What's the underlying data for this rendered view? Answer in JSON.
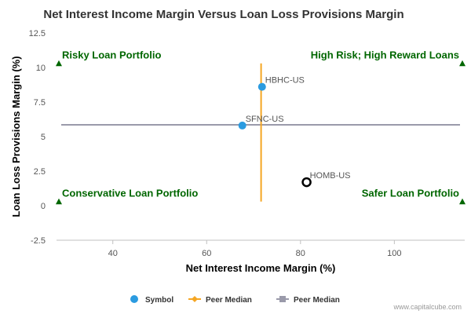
{
  "chart_data": {
    "type": "scatter",
    "title": "Net Interest Income Margin Versus Loan Loss Provisions Margin",
    "xlabel": "Net Interest Income Margin (%)",
    "ylabel": "Loan Loss Provisions Margin (%)",
    "xlim": [
      28,
      115
    ],
    "ylim": [
      -2.5,
      12.5
    ],
    "xticks": [
      "40",
      "60",
      "80",
      "100"
    ],
    "xtick_values": [
      40,
      60,
      80,
      100
    ],
    "yticks": [
      "12.5",
      "10",
      "7.5",
      "5",
      "2.5",
      "0",
      "-2.5"
    ],
    "ytick_values": [
      12.5,
      10,
      7.5,
      5,
      2.5,
      0,
      -2.5
    ],
    "grid": false,
    "points": [
      {
        "label": "HBHC-US",
        "x": 71.8,
        "y": 8.6,
        "style": "filled",
        "color": "#2b9be0"
      },
      {
        "label": "SFNC-US",
        "x": 67.6,
        "y": 5.8,
        "style": "filled",
        "color": "#2b9be0"
      },
      {
        "label": "HOMB-US",
        "x": 81.3,
        "y": 1.7,
        "style": "hollow",
        "color": "#000000"
      }
    ],
    "peer_median": {
      "x": 71.6,
      "x_line_range": [
        0.3,
        10.3
      ],
      "y": 5.85,
      "x_color": "#f5a623",
      "y_color": "#9a9aaa"
    },
    "quadrants": [
      {
        "label": "Risky Loan Portfolio",
        "position": "top-left",
        "marker_x": 28.5,
        "marker_y": 10.3
      },
      {
        "label": "High Risk; High Reward Loans",
        "position": "top-right",
        "marker_x": 114.5,
        "marker_y": 10.3
      },
      {
        "label": "Conservative Loan Portfolio",
        "position": "bottom-left",
        "marker_x": 28.5,
        "marker_y": 0.3
      },
      {
        "label": "Safer Loan Portfolio",
        "position": "bottom-right",
        "marker_x": 114.5,
        "marker_y": 0.3
      }
    ],
    "quadrant_color": "#006600",
    "legend": [
      {
        "label": "Symbol",
        "kind": "circle",
        "color": "#2b9be0"
      },
      {
        "label": "Peer Median",
        "kind": "diamond-line",
        "color": "#f5a623"
      },
      {
        "label": "Peer Median",
        "kind": "square-line",
        "color": "#9a9aaa"
      }
    ],
    "legend_position": "bottom-center",
    "credit": "www.capitalcube.com"
  }
}
